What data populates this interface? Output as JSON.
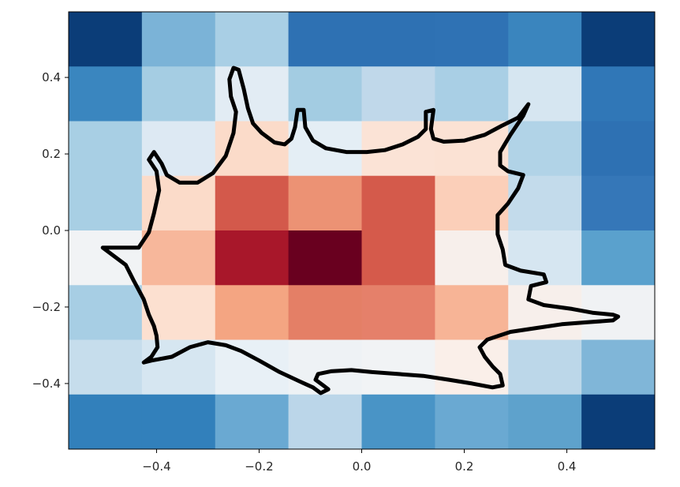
{
  "chart_data": {
    "type": "heatmap",
    "title": "",
    "xlabel": "",
    "ylabel": "",
    "xlim": [
      -0.5714,
      0.5714
    ],
    "ylim": [
      -0.5714,
      0.5714
    ],
    "grid": false,
    "colormap": "RdBu_r",
    "x_edges": [
      -0.5714,
      -0.4286,
      -0.2857,
      -0.1429,
      0.0,
      0.1429,
      0.2857,
      0.4286,
      0.5714
    ],
    "y_edges": [
      0.5714,
      0.4286,
      0.2857,
      0.1429,
      0.0,
      -0.1429,
      -0.2857,
      -0.4286,
      -0.5714
    ],
    "x_ticks": [
      "−0.4",
      "−0.2",
      "0.0",
      "0.2",
      "0.4"
    ],
    "x_tick_values": [
      -0.4,
      -0.2,
      0.0,
      0.2,
      0.4
    ],
    "y_ticks": [
      "0.4",
      "0.2",
      "0.0",
      "−0.2",
      "−0.4"
    ],
    "y_tick_values": [
      0.4,
      0.2,
      0.0,
      -0.2,
      -0.4
    ],
    "cell_colors": [
      [
        "#0b3d78",
        "#7bb3d7",
        "#a9cfe5",
        "#2e71b3",
        "#2e71b3",
        "#2f72b4",
        "#3a85be",
        "#0b3d78"
      ],
      [
        "#3a86bf",
        "#a5cde3",
        "#e2ecf4",
        "#a3cce2",
        "#c0d8ea",
        "#a9cfe5",
        "#d6e6f1",
        "#3077b7"
      ],
      [
        "#a8cfe4",
        "#dde9f3",
        "#fbdbc9",
        "#e4eef5",
        "#fbe3d6",
        "#fbe2d4",
        "#b1d3e7",
        "#2e71b3"
      ],
      [
        "#a8cfe4",
        "#fbdbc9",
        "#d3594b",
        "#ec9274",
        "#d45a4b",
        "#fbcfb9",
        "#c3dbeb",
        "#3577b8"
      ],
      [
        "#f1f3f5",
        "#f7b79b",
        "#a8172a",
        "#69001f",
        "#d55a4b",
        "#f7efeb",
        "#d6e6f1",
        "#5aa1cd"
      ],
      [
        "#a7cee4",
        "#fce0d0",
        "#f4a582",
        "#e47f66",
        "#e5806a",
        "#f7b496",
        "#f7efeb",
        "#f0f2f4"
      ],
      [
        "#c6ddec",
        "#d6e6f1",
        "#e8f0f6",
        "#eef2f5",
        "#f1f3f5",
        "#faefe9",
        "#bcd7e9",
        "#80b6d8"
      ],
      [
        "#3280bb",
        "#3280bb",
        "#6aa9d2",
        "#bbd6e9",
        "#4994c6",
        "#6aa9d2",
        "#5ea2cc",
        "#0b3d78"
      ]
    ],
    "outline": {
      "description_note": "",
      "points": [
        [
          -0.505,
          -0.045
        ],
        [
          -0.435,
          -0.045
        ],
        [
          -0.415,
          -0.005
        ],
        [
          -0.405,
          0.045
        ],
        [
          -0.395,
          0.105
        ],
        [
          -0.4,
          0.155
        ],
        [
          -0.415,
          0.185
        ],
        [
          -0.405,
          0.205
        ],
        [
          -0.39,
          0.175
        ],
        [
          -0.38,
          0.145
        ],
        [
          -0.355,
          0.125
        ],
        [
          -0.32,
          0.125
        ],
        [
          -0.29,
          0.15
        ],
        [
          -0.265,
          0.195
        ],
        [
          -0.25,
          0.255
        ],
        [
          -0.245,
          0.31
        ],
        [
          -0.255,
          0.35
        ],
        [
          -0.258,
          0.395
        ],
        [
          -0.25,
          0.425
        ],
        [
          -0.24,
          0.42
        ],
        [
          -0.23,
          0.37
        ],
        [
          -0.222,
          0.32
        ],
        [
          -0.212,
          0.28
        ],
        [
          -0.195,
          0.255
        ],
        [
          -0.17,
          0.23
        ],
        [
          -0.15,
          0.225
        ],
        [
          -0.137,
          0.24
        ],
        [
          -0.13,
          0.27
        ],
        [
          -0.125,
          0.315
        ],
        [
          -0.113,
          0.315
        ],
        [
          -0.11,
          0.27
        ],
        [
          -0.095,
          0.235
        ],
        [
          -0.07,
          0.215
        ],
        [
          -0.03,
          0.205
        ],
        [
          0.01,
          0.205
        ],
        [
          0.045,
          0.21
        ],
        [
          0.08,
          0.225
        ],
        [
          0.11,
          0.245
        ],
        [
          0.125,
          0.265
        ],
        [
          0.125,
          0.31
        ],
        [
          0.14,
          0.315
        ],
        [
          0.135,
          0.265
        ],
        [
          0.14,
          0.24
        ],
        [
          0.16,
          0.232
        ],
        [
          0.2,
          0.235
        ],
        [
          0.24,
          0.25
        ],
        [
          0.275,
          0.275
        ],
        [
          0.305,
          0.295
        ],
        [
          0.325,
          0.33
        ],
        [
          0.315,
          0.3
        ],
        [
          0.29,
          0.25
        ],
        [
          0.27,
          0.205
        ],
        [
          0.27,
          0.17
        ],
        [
          0.285,
          0.155
        ],
        [
          0.315,
          0.145
        ],
        [
          0.305,
          0.11
        ],
        [
          0.285,
          0.07
        ],
        [
          0.265,
          0.04
        ],
        [
          0.265,
          -0.01
        ],
        [
          0.275,
          -0.05
        ],
        [
          0.28,
          -0.09
        ],
        [
          0.31,
          -0.105
        ],
        [
          0.355,
          -0.115
        ],
        [
          0.36,
          -0.135
        ],
        [
          0.33,
          -0.145
        ],
        [
          0.325,
          -0.18
        ],
        [
          0.355,
          -0.195
        ],
        [
          0.41,
          -0.205
        ],
        [
          0.45,
          -0.215
        ],
        [
          0.49,
          -0.22
        ],
        [
          0.5,
          -0.225
        ],
        [
          0.49,
          -0.235
        ],
        [
          0.44,
          -0.24
        ],
        [
          0.39,
          -0.245
        ],
        [
          0.34,
          -0.255
        ],
        [
          0.29,
          -0.265
        ],
        [
          0.245,
          -0.285
        ],
        [
          0.23,
          -0.305
        ],
        [
          0.24,
          -0.33
        ],
        [
          0.255,
          -0.355
        ],
        [
          0.27,
          -0.375
        ],
        [
          0.275,
          -0.405
        ],
        [
          0.255,
          -0.41
        ],
        [
          0.215,
          -0.4
        ],
        [
          0.17,
          -0.39
        ],
        [
          0.12,
          -0.38
        ],
        [
          0.07,
          -0.375
        ],
        [
          0.02,
          -0.37
        ],
        [
          -0.02,
          -0.365
        ],
        [
          -0.06,
          -0.368
        ],
        [
          -0.085,
          -0.375
        ],
        [
          -0.09,
          -0.39
        ],
        [
          -0.075,
          -0.405
        ],
        [
          -0.065,
          -0.415
        ],
        [
          -0.08,
          -0.425
        ],
        [
          -0.095,
          -0.41
        ],
        [
          -0.12,
          -0.395
        ],
        [
          -0.16,
          -0.37
        ],
        [
          -0.2,
          -0.34
        ],
        [
          -0.235,
          -0.315
        ],
        [
          -0.265,
          -0.3
        ],
        [
          -0.3,
          -0.292
        ],
        [
          -0.335,
          -0.305
        ],
        [
          -0.37,
          -0.33
        ],
        [
          -0.41,
          -0.34
        ],
        [
          -0.425,
          -0.345
        ],
        [
          -0.41,
          -0.33
        ],
        [
          -0.398,
          -0.305
        ],
        [
          -0.4,
          -0.275
        ],
        [
          -0.405,
          -0.25
        ],
        [
          -0.415,
          -0.22
        ],
        [
          -0.425,
          -0.18
        ],
        [
          -0.445,
          -0.13
        ],
        [
          -0.46,
          -0.09
        ],
        [
          -0.48,
          -0.07
        ],
        [
          -0.505,
          -0.045
        ]
      ]
    }
  }
}
